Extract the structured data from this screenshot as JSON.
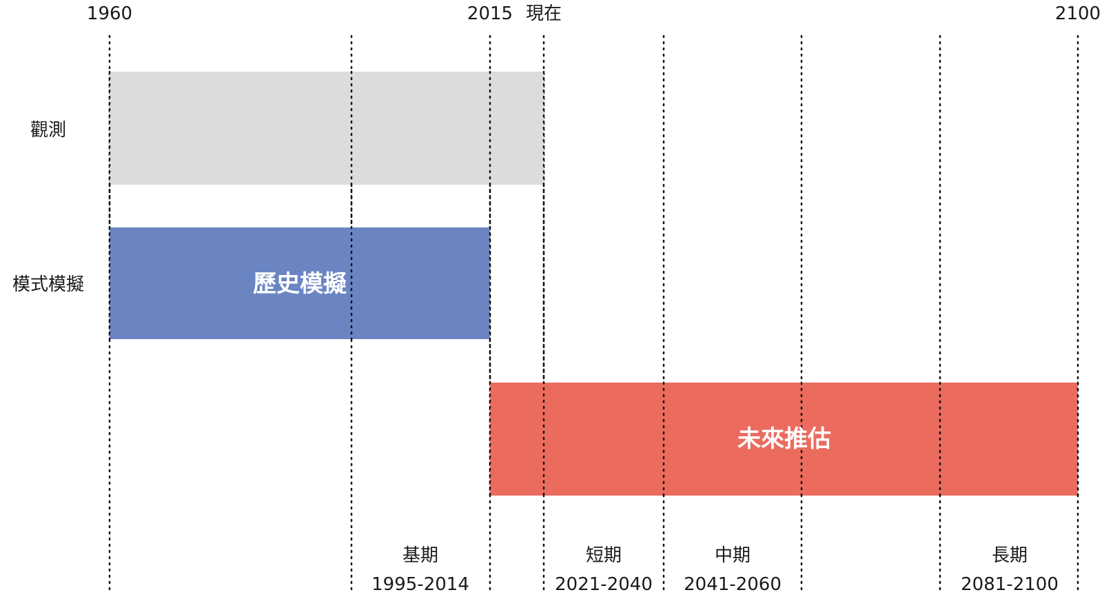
{
  "axis": {
    "start_label": "1960",
    "baseline_end_label": "2015",
    "present_label": "現在",
    "end_label": "2100"
  },
  "rows": {
    "observation": "觀測",
    "model": "模式模擬"
  },
  "bars": {
    "observation": {
      "start": 1960,
      "end": 2020,
      "label": "",
      "color": "#dcdcdc"
    },
    "historical": {
      "start": 1960,
      "end": 2015,
      "label": "歷史模擬",
      "color": "#6a85c2"
    },
    "future": {
      "start": 2015,
      "end": 2100,
      "label": "未來推估",
      "color": "#eb6c5f"
    }
  },
  "periods": [
    {
      "name": "基期",
      "range": "1995-2014"
    },
    {
      "name": "短期",
      "range": "2021-2040"
    },
    {
      "name": "中期",
      "range": "2041-2060"
    },
    {
      "name": "長期",
      "range": "2081-2100"
    }
  ]
}
